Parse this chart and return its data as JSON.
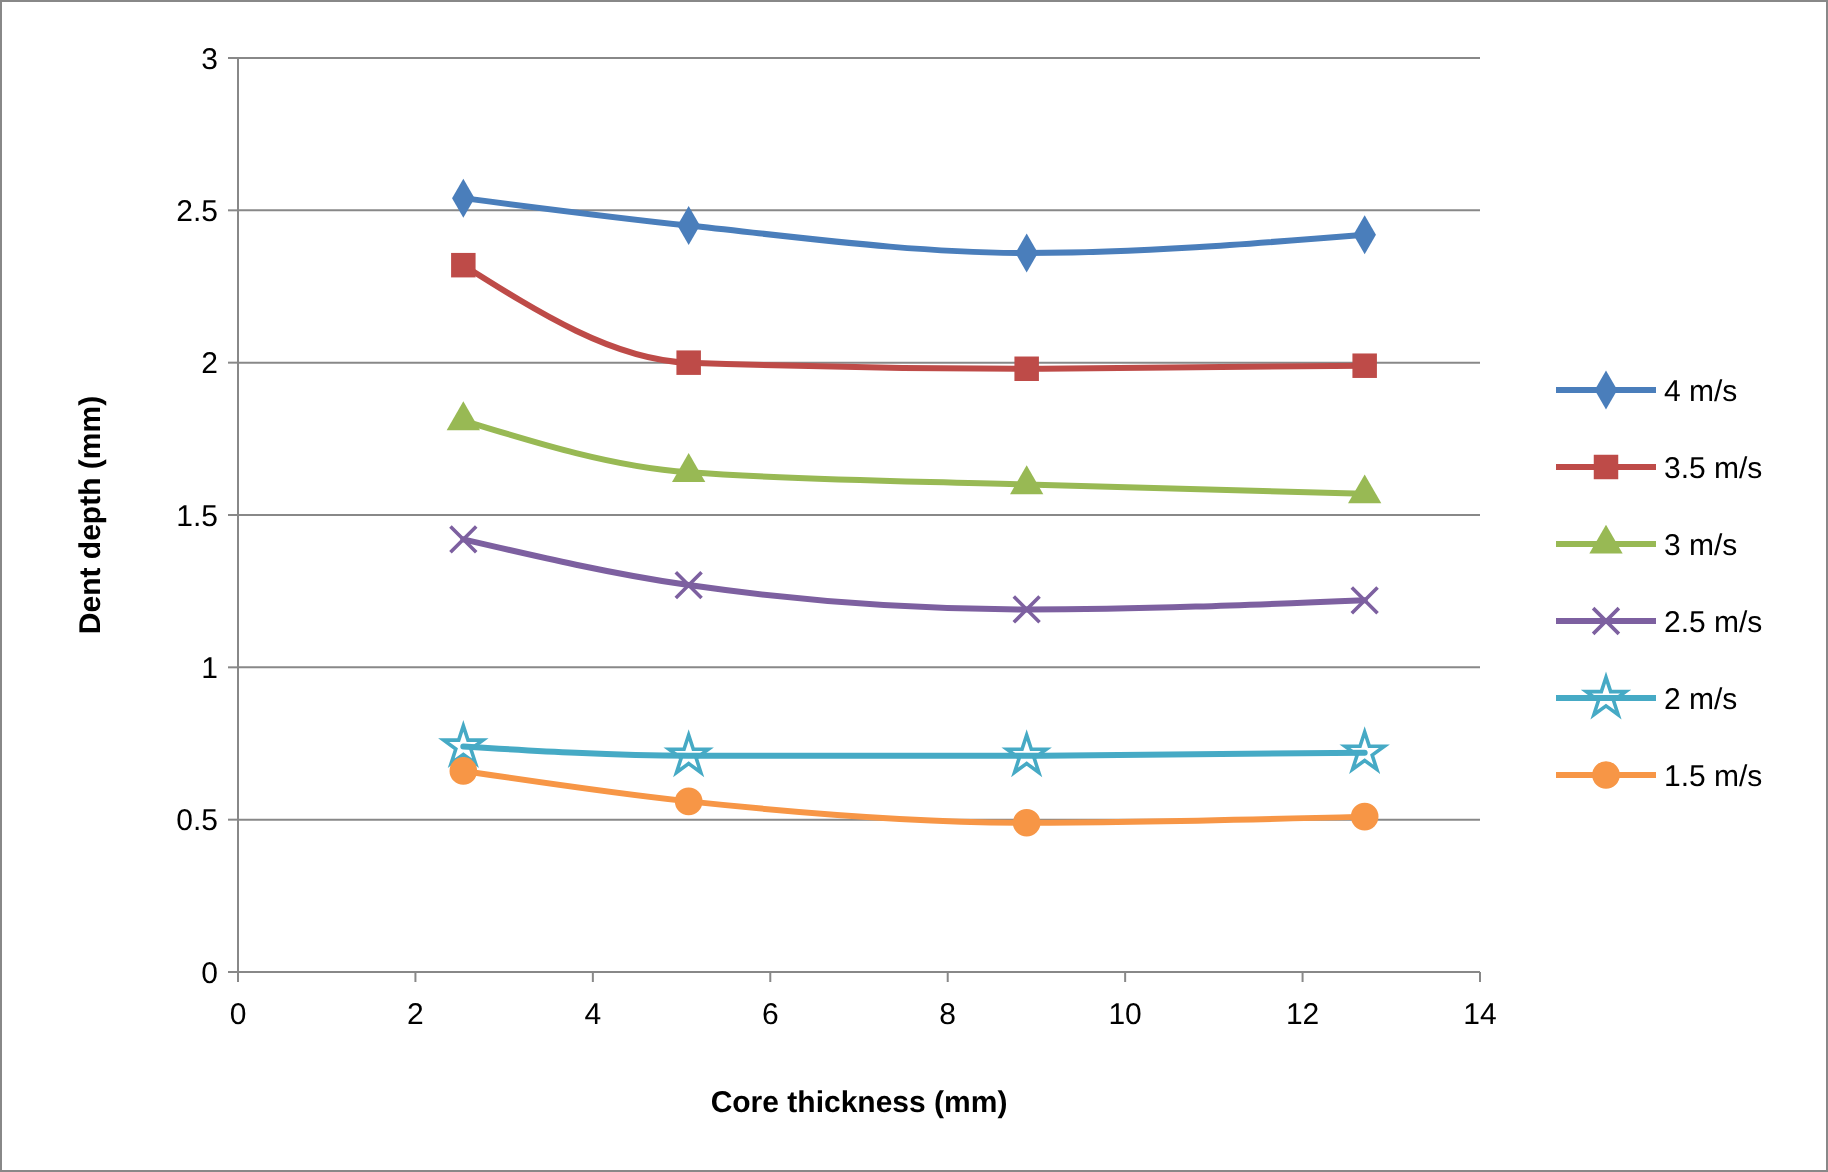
{
  "chart_data": {
    "type": "line",
    "xlabel": "Core thickness (mm)",
    "ylabel": "Dent depth (mm)",
    "x": [
      2.54,
      5.08,
      8.89,
      12.7
    ],
    "xlim": [
      0,
      14
    ],
    "xticks": [
      0,
      2,
      4,
      6,
      8,
      10,
      12,
      14
    ],
    "ylim": [
      0,
      3
    ],
    "yticks": [
      0,
      0.5,
      1,
      1.5,
      2,
      2.5,
      3
    ],
    "grid": "y",
    "legend": "right",
    "line_style": "solid",
    "series": [
      {
        "name": "4 m/s",
        "color": "#4a7ebb",
        "marker": "diamond",
        "values": [
          2.54,
          2.45,
          2.36,
          2.42
        ]
      },
      {
        "name": "3.5 m/s",
        "color": "#be4b48",
        "marker": "square",
        "values": [
          2.32,
          2.0,
          1.98,
          1.99
        ]
      },
      {
        "name": "3 m/s",
        "color": "#98b954",
        "marker": "triangle",
        "values": [
          1.81,
          1.64,
          1.6,
          1.57
        ]
      },
      {
        "name": "2.5 m/s",
        "color": "#7d60a0",
        "marker": "cross",
        "values": [
          1.42,
          1.27,
          1.19,
          1.22
        ]
      },
      {
        "name": "2 m/s",
        "color": "#46aac5",
        "marker": "star",
        "values": [
          0.74,
          0.71,
          0.71,
          0.72
        ]
      },
      {
        "name": "1.5 m/s",
        "color": "#f79646",
        "marker": "circle",
        "values": [
          0.66,
          0.56,
          0.49,
          0.51
        ]
      }
    ]
  }
}
